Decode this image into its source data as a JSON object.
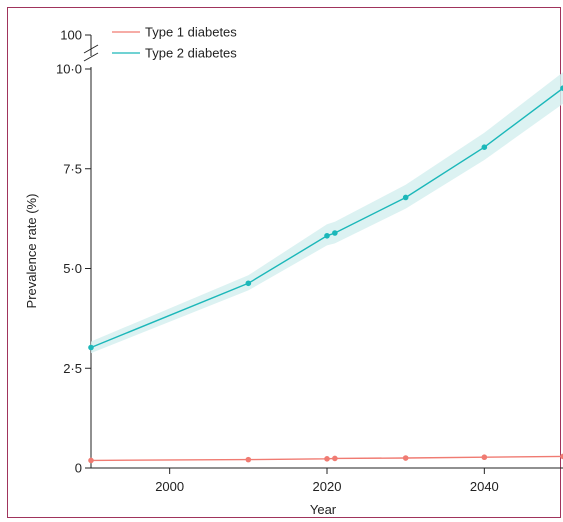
{
  "chart_data": {
    "type": "line",
    "xlabel": "Year",
    "ylabel": "Prevalence rate (%)",
    "xlim": [
      1990,
      2050
    ],
    "ylim": [
      0,
      10
    ],
    "x_ticks": [
      2000,
      2020,
      2040
    ],
    "x_tick_labels": [
      "2000",
      "2020",
      "2040"
    ],
    "y_ticks": [
      0,
      2.5,
      5,
      7.5,
      10
    ],
    "y_tick_labels": [
      "0",
      "2·5",
      "5·0",
      "7·5",
      "10·0"
    ],
    "y_break_label": "100",
    "legend_position": "top-left",
    "grid": false,
    "series": [
      {
        "name": "Type 1 diabetes",
        "color": "#f07b72",
        "x": [
          1990,
          2010,
          2020,
          2021,
          2030,
          2040,
          2050
        ],
        "y": [
          0.19,
          0.21,
          0.23,
          0.24,
          0.25,
          0.27,
          0.29
        ]
      },
      {
        "name": "Type 2 diabetes",
        "color": "#1bb7b9",
        "band_color": "#d6f0f0",
        "x": [
          1990,
          2010,
          2020,
          2021,
          2030,
          2040,
          2050
        ],
        "y": [
          3.02,
          4.63,
          5.82,
          5.89,
          6.78,
          8.04,
          9.52
        ],
        "lower": [
          2.88,
          4.45,
          5.58,
          5.63,
          6.5,
          7.72,
          9.13
        ],
        "upper": [
          3.17,
          4.83,
          6.11,
          6.17,
          7.1,
          8.4,
          9.92
        ]
      }
    ]
  }
}
